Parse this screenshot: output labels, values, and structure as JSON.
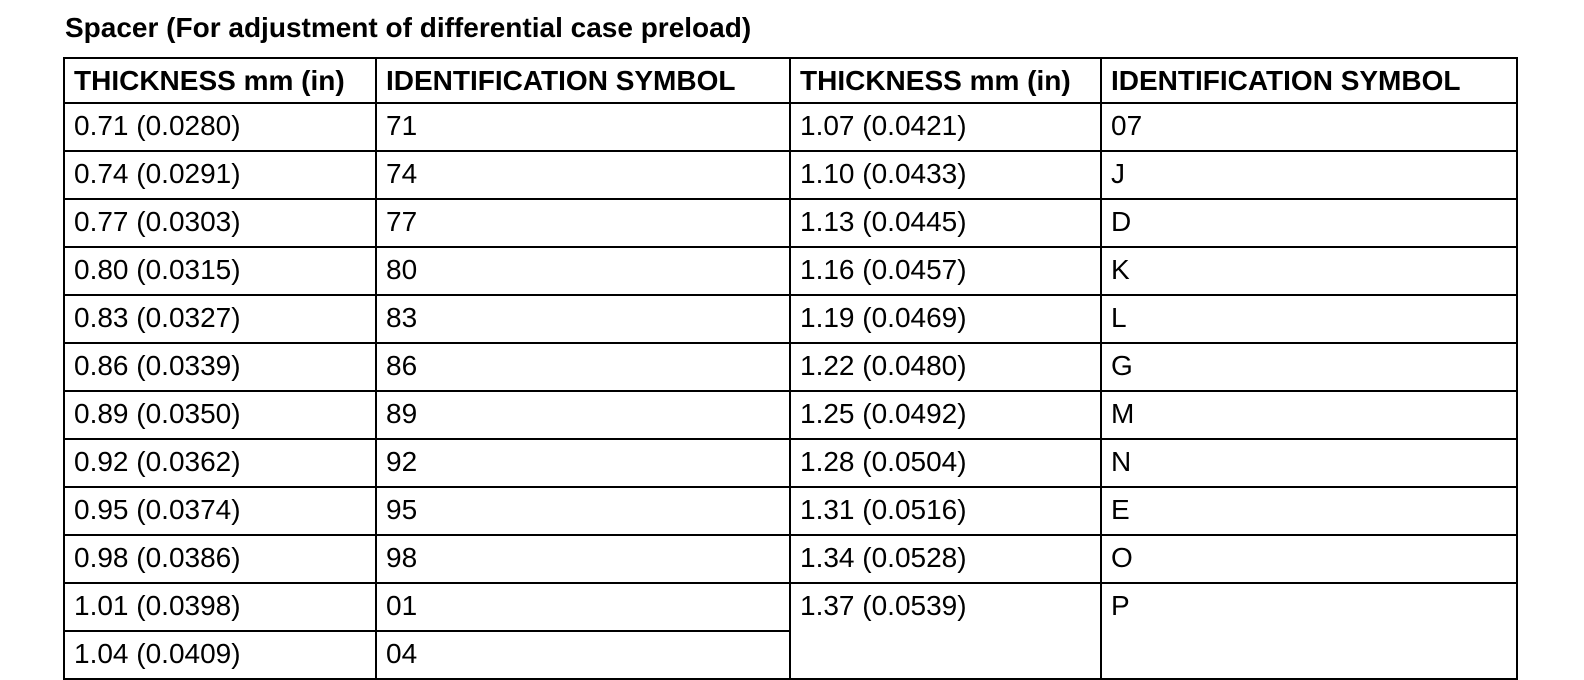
{
  "title": "Spacer (For adjustment of differential case preload)",
  "headers": [
    "THICKNESS mm (in)",
    "IDENTIFICATION SYMBOL",
    "THICKNESS mm (in)",
    "IDENTIFICATION SYMBOL"
  ],
  "rows": [
    {
      "thickness_left": "0.71 (0.0280)",
      "symbol_left": "71",
      "thickness_right": "1.07 (0.0421)",
      "symbol_right": "07"
    },
    {
      "thickness_left": "0.74 (0.0291)",
      "symbol_left": "74",
      "thickness_right": "1.10 (0.0433)",
      "symbol_right": "J"
    },
    {
      "thickness_left": "0.77 (0.0303)",
      "symbol_left": "77",
      "thickness_right": "1.13 (0.0445)",
      "symbol_right": "D"
    },
    {
      "thickness_left": "0.80 (0.0315)",
      "symbol_left": "80",
      "thickness_right": "1.16 (0.0457)",
      "symbol_right": "K"
    },
    {
      "thickness_left": "0.83 (0.0327)",
      "symbol_left": "83",
      "thickness_right": "1.19 (0.0469)",
      "symbol_right": "L"
    },
    {
      "thickness_left": "0.86 (0.0339)",
      "symbol_left": "86",
      "thickness_right": "1.22 (0.0480)",
      "symbol_right": "G"
    },
    {
      "thickness_left": "0.89 (0.0350)",
      "symbol_left": "89",
      "thickness_right": "1.25 (0.0492)",
      "symbol_right": "M"
    },
    {
      "thickness_left": "0.92 (0.0362)",
      "symbol_left": "92",
      "thickness_right": "1.28 (0.0504)",
      "symbol_right": "N"
    },
    {
      "thickness_left": "0.95 (0.0374)",
      "symbol_left": "95",
      "thickness_right": "1.31 (0.0516)",
      "symbol_right": "E"
    },
    {
      "thickness_left": "0.98 (0.0386)",
      "symbol_left": "98",
      "thickness_right": "1.34 (0.0528)",
      "symbol_right": "O"
    },
    {
      "thickness_left": "1.01 (0.0398)",
      "symbol_left": "01",
      "thickness_right": "1.37 (0.0539)",
      "symbol_right": "P"
    },
    {
      "thickness_left": "1.04 (0.0409)",
      "symbol_left": "04"
    }
  ]
}
